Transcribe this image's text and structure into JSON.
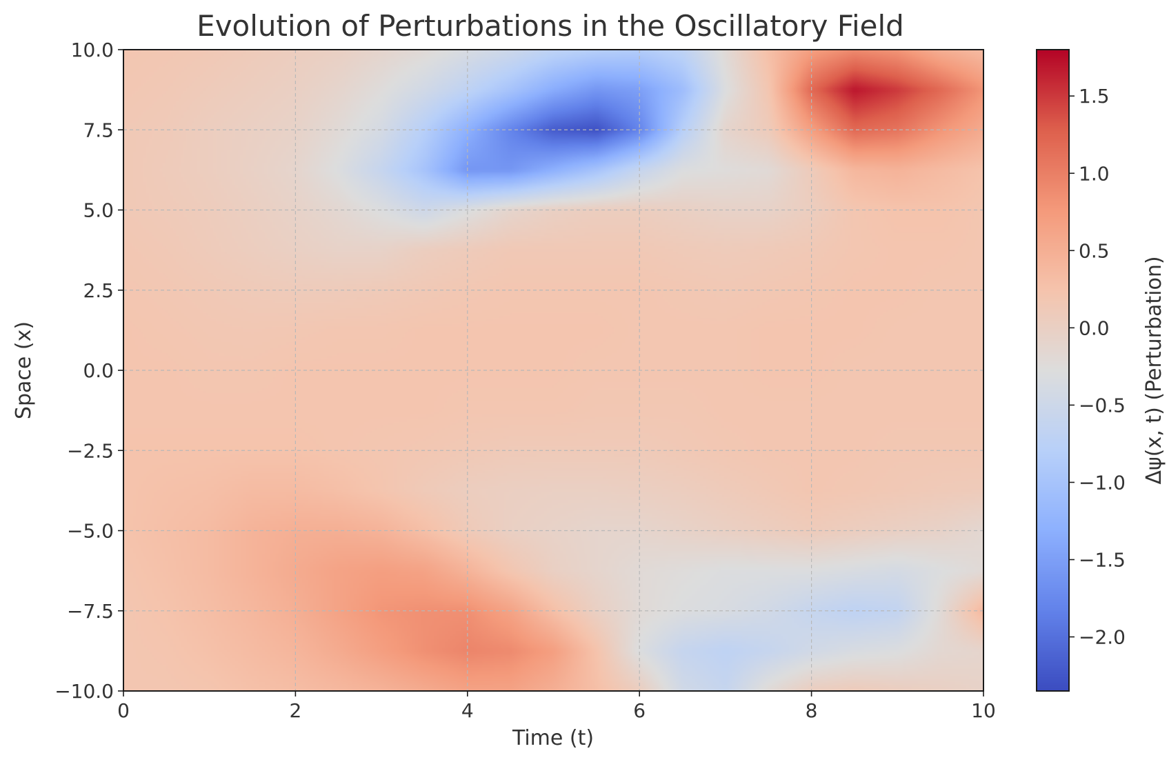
{
  "chart_data": {
    "type": "heatmap",
    "title": "Evolution of Perturbations in the Oscillatory Field",
    "xlabel": "Time (t)",
    "ylabel": "Space (x)",
    "colorbar_label": "Δψ(x, t) (Perturbation)",
    "colormap": "coolwarm",
    "xlim": [
      0,
      10
    ],
    "ylim": [
      -10,
      10
    ],
    "color_range": [
      -2.35,
      1.8
    ],
    "x_ticks": [
      0,
      2,
      4,
      6,
      8,
      10
    ],
    "x_tick_labels": [
      "0",
      "2",
      "4",
      "6",
      "8",
      "10"
    ],
    "y_ticks": [
      -10,
      -7.5,
      -5,
      -2.5,
      0,
      2.5,
      5,
      7.5,
      10
    ],
    "y_tick_labels": [
      "−10.0",
      "−7.5",
      "−5.0",
      "−2.5",
      "0.0",
      "2.5",
      "5.0",
      "7.5",
      "10.0"
    ],
    "colorbar_ticks": [
      -2.0,
      -1.5,
      -1.0,
      -0.5,
      0.0,
      0.5,
      1.0,
      1.5
    ],
    "colorbar_tick_labels": [
      "−2.0",
      "−1.5",
      "−1.0",
      "−0.5",
      "0.0",
      "0.5",
      "1.0",
      "1.5"
    ],
    "grid": true,
    "grid_t": [
      0,
      0.5,
      1,
      1.5,
      2,
      2.5,
      3,
      3.5,
      4,
      4.5,
      5,
      5.5,
      6,
      6.5,
      7,
      7.5,
      8,
      8.5,
      9,
      9.5,
      10
    ],
    "grid_x": [
      10,
      8.75,
      7.5,
      6.25,
      5,
      3.75,
      2.5,
      1.25,
      0,
      -1.25,
      -2.5,
      -3.75,
      -5,
      -6.25,
      -7.5,
      -8.75,
      -10
    ],
    "values": [
      [
        0.2,
        0.18,
        0.15,
        0.1,
        0.05,
        0.0,
        -0.1,
        -0.2,
        -0.35,
        -0.5,
        -0.7,
        -0.8,
        -0.85,
        -0.7,
        -0.2,
        0.3,
        0.7,
        0.9,
        0.8,
        0.5,
        0.35
      ],
      [
        0.18,
        0.15,
        0.1,
        0.05,
        0.0,
        -0.1,
        -0.25,
        -0.45,
        -0.7,
        -1.0,
        -1.35,
        -1.6,
        -1.5,
        -1.1,
        -0.3,
        0.2,
        1.2,
        1.7,
        1.5,
        1.2,
        0.8
      ],
      [
        0.15,
        0.12,
        0.05,
        0.0,
        -0.05,
        -0.2,
        -0.4,
        -0.8,
        -1.3,
        -1.8,
        -2.2,
        -2.3,
        -1.8,
        -0.8,
        -0.1,
        0.1,
        0.7,
        1.2,
        1.1,
        0.8,
        0.55
      ],
      [
        0.15,
        0.1,
        0.05,
        -0.02,
        -0.1,
        -0.3,
        -0.6,
        -1.0,
        -1.6,
        -1.6,
        -1.3,
        -1.0,
        -0.6,
        -0.3,
        -0.25,
        -0.2,
        0.1,
        0.4,
        0.45,
        0.35,
        0.25
      ],
      [
        0.15,
        0.12,
        0.08,
        0.02,
        -0.05,
        -0.15,
        -0.3,
        -0.5,
        -0.3,
        -0.1,
        0.0,
        0.05,
        0.05,
        0.0,
        -0.05,
        -0.05,
        0.05,
        0.2,
        0.25,
        0.25,
        0.2
      ],
      [
        0.18,
        0.15,
        0.1,
        0.05,
        0.0,
        -0.05,
        -0.05,
        0.05,
        0.1,
        0.15,
        0.15,
        0.15,
        0.15,
        0.12,
        0.1,
        0.12,
        0.15,
        0.2,
        0.22,
        0.22,
        0.2
      ],
      [
        0.2,
        0.18,
        0.15,
        0.12,
        0.1,
        0.1,
        0.12,
        0.15,
        0.18,
        0.2,
        0.2,
        0.2,
        0.2,
        0.18,
        0.16,
        0.18,
        0.2,
        0.22,
        0.22,
        0.2,
        0.2
      ],
      [
        0.22,
        0.2,
        0.18,
        0.17,
        0.18,
        0.2,
        0.2,
        0.22,
        0.22,
        0.22,
        0.22,
        0.22,
        0.2,
        0.2,
        0.2,
        0.22,
        0.22,
        0.22,
        0.2,
        0.2,
        0.2
      ],
      [
        0.22,
        0.22,
        0.2,
        0.2,
        0.22,
        0.22,
        0.22,
        0.22,
        0.22,
        0.22,
        0.22,
        0.2,
        0.2,
        0.2,
        0.2,
        0.22,
        0.22,
        0.2,
        0.2,
        0.2,
        0.2
      ],
      [
        0.22,
        0.22,
        0.22,
        0.22,
        0.22,
        0.22,
        0.22,
        0.22,
        0.2,
        0.2,
        0.2,
        0.18,
        0.18,
        0.18,
        0.2,
        0.2,
        0.2,
        0.2,
        0.2,
        0.2,
        0.2
      ],
      [
        0.25,
        0.25,
        0.25,
        0.25,
        0.25,
        0.22,
        0.2,
        0.18,
        0.15,
        0.12,
        0.12,
        0.12,
        0.12,
        0.15,
        0.18,
        0.2,
        0.2,
        0.2,
        0.18,
        0.18,
        0.18
      ],
      [
        0.25,
        0.28,
        0.3,
        0.35,
        0.35,
        0.3,
        0.22,
        0.12,
        0.05,
        0.02,
        0.0,
        0.0,
        0.02,
        0.05,
        0.1,
        0.15,
        0.2,
        0.18,
        0.15,
        0.12,
        0.1
      ],
      [
        0.25,
        0.3,
        0.35,
        0.45,
        0.5,
        0.5,
        0.45,
        0.3,
        0.12,
        0.0,
        -0.05,
        -0.1,
        -0.1,
        -0.05,
        0.0,
        0.05,
        0.1,
        0.05,
        0.0,
        -0.05,
        -0.15
      ],
      [
        0.22,
        0.28,
        0.35,
        0.45,
        0.55,
        0.65,
        0.7,
        0.65,
        0.45,
        0.2,
        0.0,
        -0.1,
        -0.2,
        -0.25,
        -0.3,
        -0.3,
        -0.3,
        -0.35,
        -0.4,
        -0.3,
        -0.2
      ],
      [
        0.2,
        0.25,
        0.32,
        0.4,
        0.5,
        0.65,
        0.8,
        0.85,
        0.85,
        0.65,
        0.3,
        0.0,
        -0.2,
        -0.3,
        -0.35,
        -0.45,
        -0.6,
        -0.7,
        -0.65,
        -0.2,
        0.4
      ],
      [
        0.2,
        0.22,
        0.28,
        0.35,
        0.42,
        0.55,
        0.7,
        0.85,
        0.95,
        0.9,
        0.7,
        0.25,
        -0.3,
        -0.6,
        -0.7,
        -0.6,
        -0.45,
        -0.35,
        -0.3,
        -0.15,
        -0.1
      ],
      [
        0.2,
        0.2,
        0.22,
        0.28,
        0.32,
        0.38,
        0.45,
        0.55,
        0.65,
        0.65,
        0.5,
        0.3,
        0.05,
        -0.45,
        -0.6,
        -0.2,
        0.05,
        0.1,
        0.05,
        0.0,
        -0.05
      ]
    ]
  }
}
